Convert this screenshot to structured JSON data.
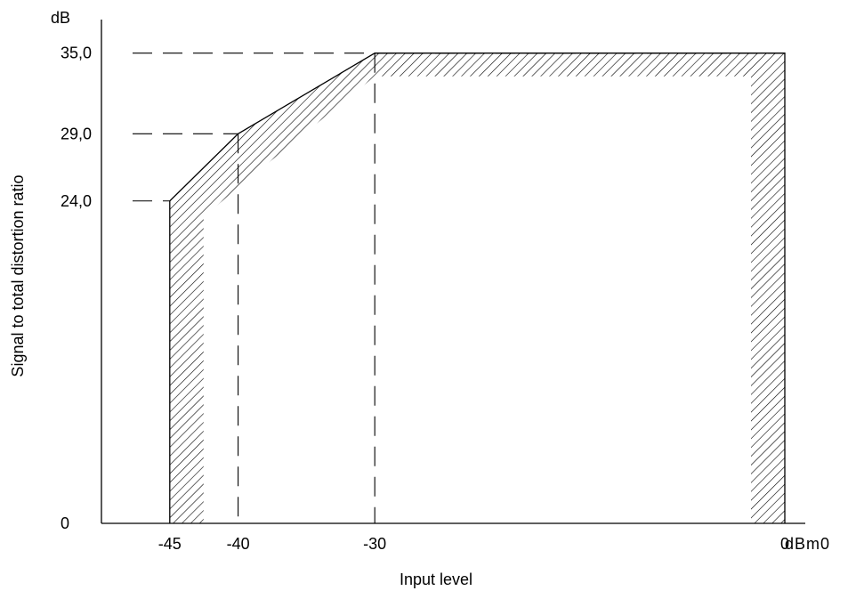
{
  "chart_data": {
    "type": "line",
    "title": "",
    "xlabel": "Input level",
    "ylabel": "Signal to total distortion ratio",
    "x_unit": "dBm0",
    "y_unit": "dB",
    "x_ticks": [
      {
        "value": -45,
        "label": "-45"
      },
      {
        "value": -40,
        "label": "-40"
      },
      {
        "value": -30,
        "label": "-30"
      },
      {
        "value": 0,
        "label": "0"
      }
    ],
    "y_ticks": [
      {
        "value": 0,
        "label": "0"
      },
      {
        "value": 24,
        "label": "24,0"
      },
      {
        "value": 29,
        "label": "29,0"
      },
      {
        "value": 35,
        "label": "35,0"
      }
    ],
    "xlim": [
      -50,
      1.5
    ],
    "ylim": [
      0,
      37.5
    ],
    "grid": false,
    "mask_limit": {
      "x": [
        -45,
        -40,
        -30,
        0,
        0
      ],
      "y": [
        24,
        29,
        35,
        35,
        0
      ],
      "start_y": 0
    }
  }
}
